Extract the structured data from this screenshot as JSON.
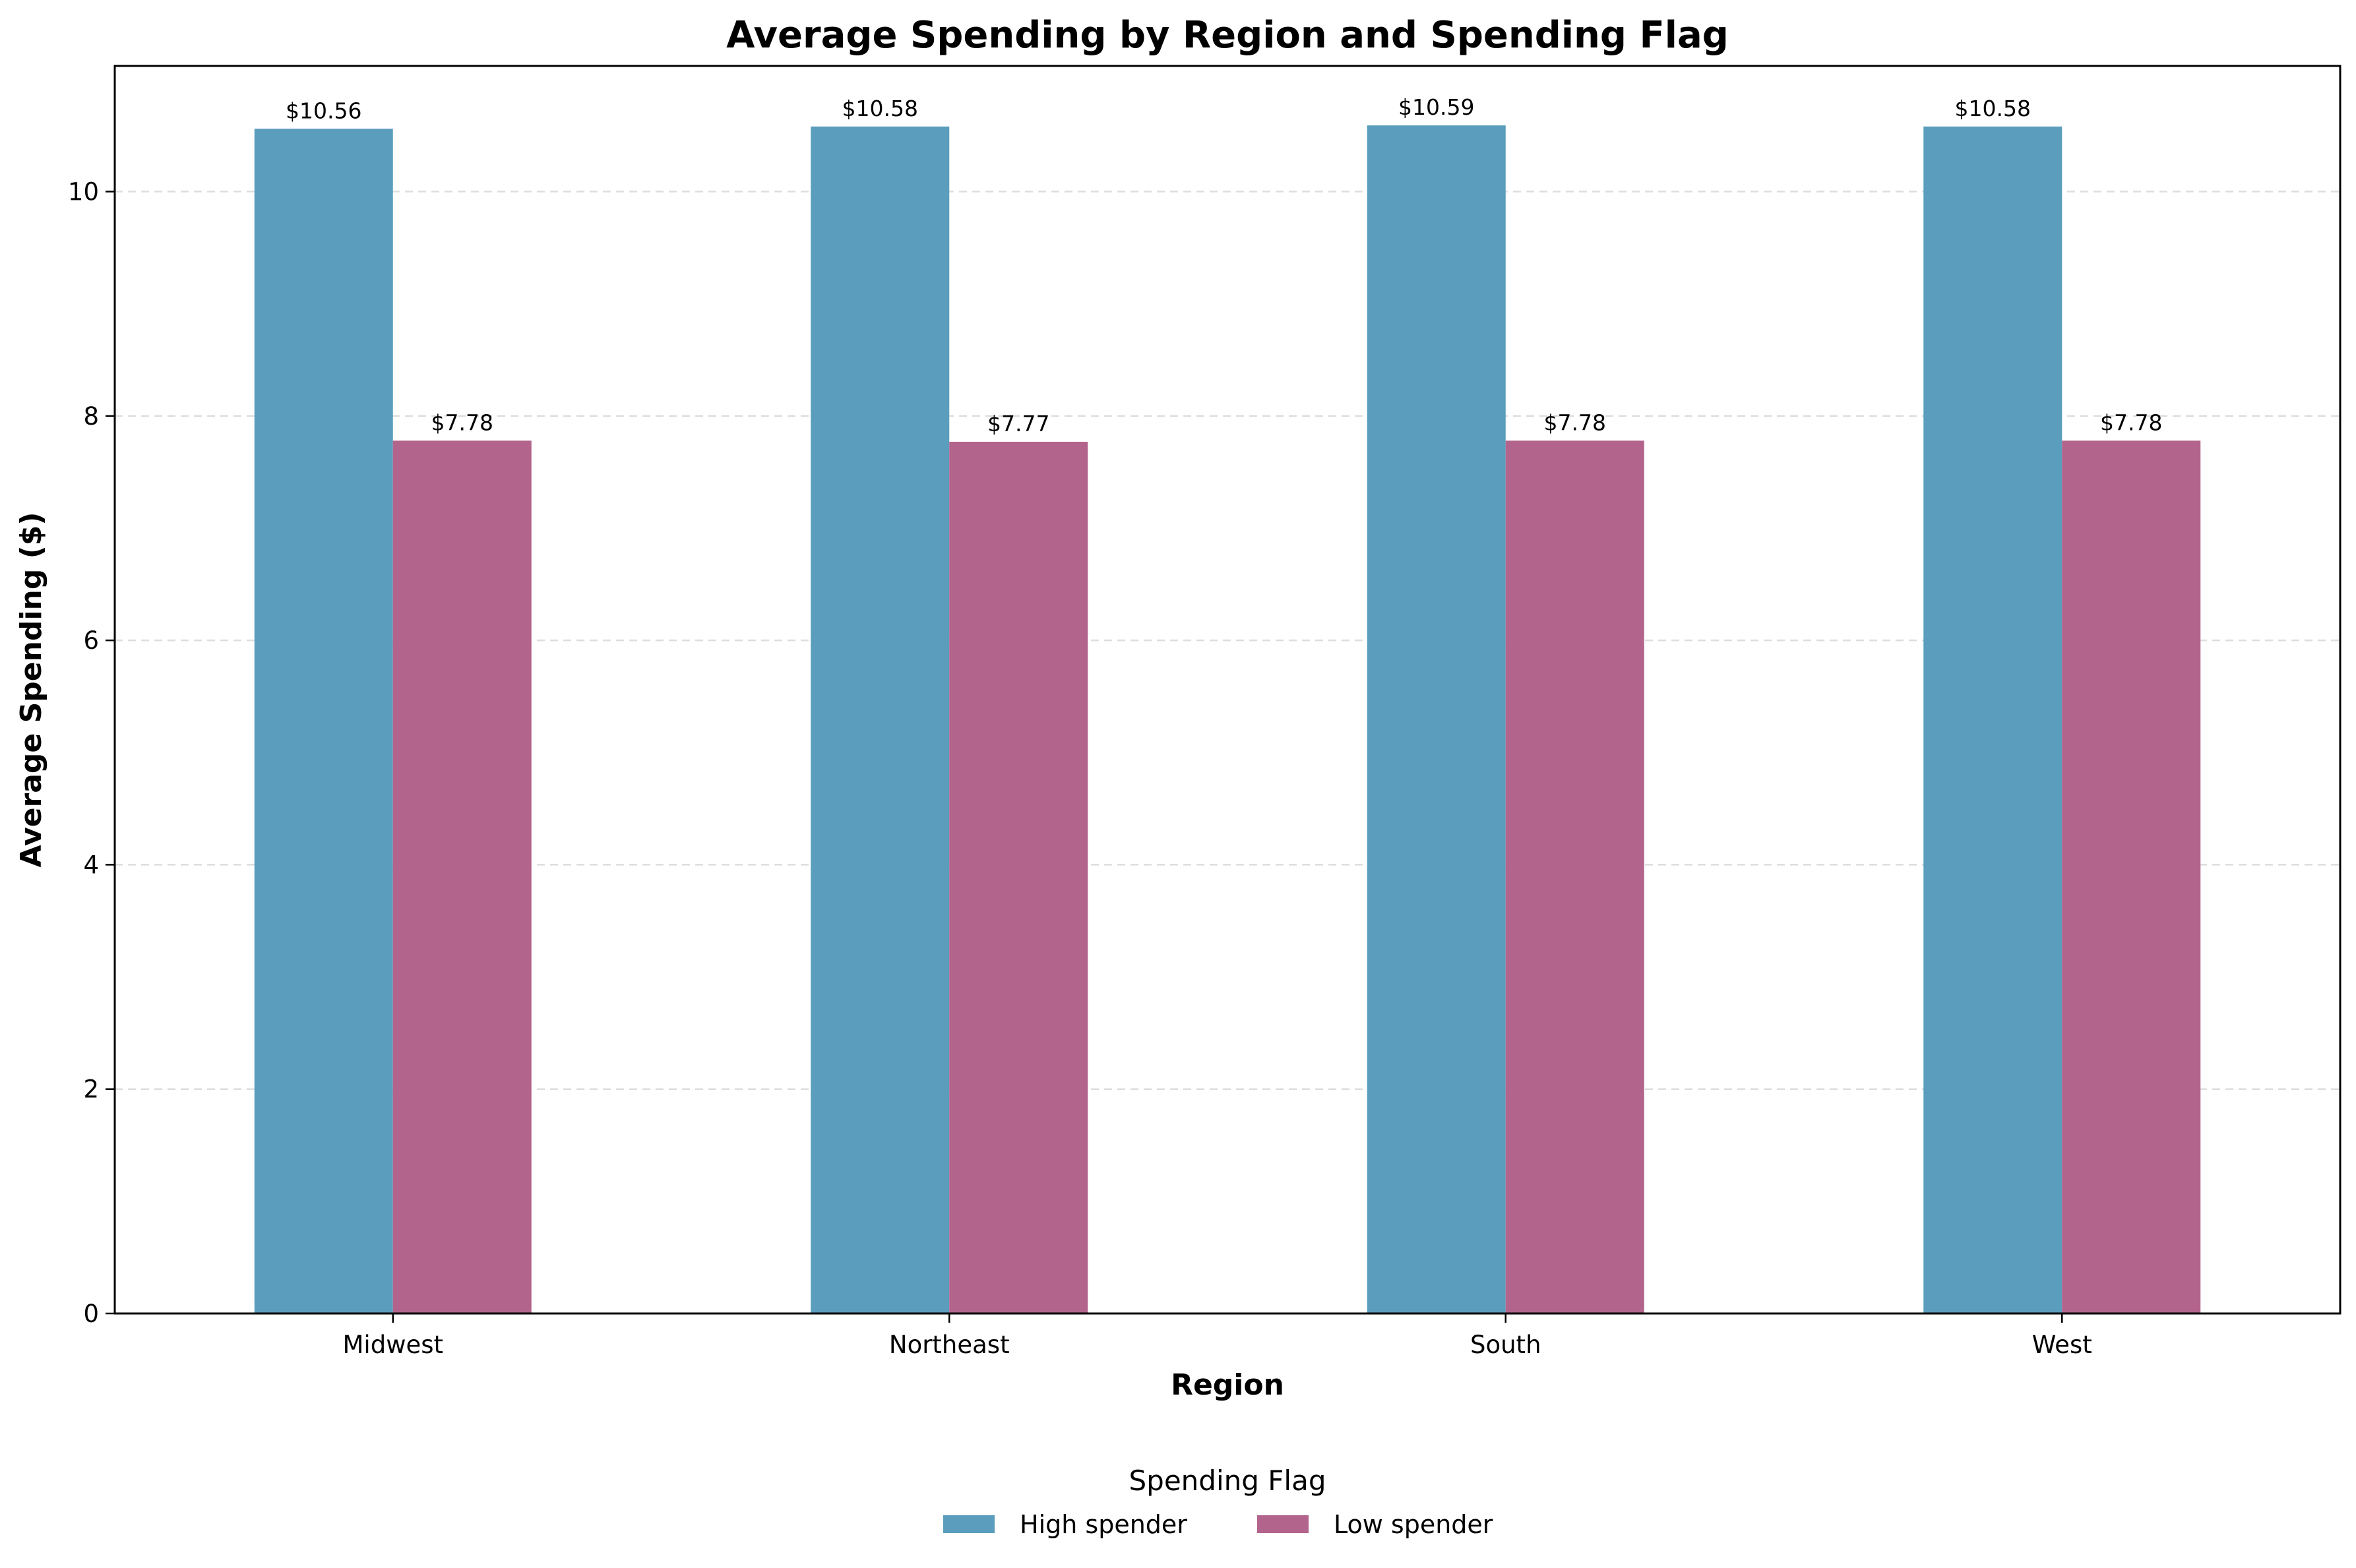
{
  "chart_data": {
    "type": "bar",
    "title": "Average Spending by Region and Spending Flag",
    "xlabel": "Region",
    "ylabel": "Average Spending ($)",
    "categories": [
      "Midwest",
      "Northeast",
      "South",
      "West"
    ],
    "series": [
      {
        "name": "High spender",
        "color": "#5A9DBC",
        "values": [
          10.56,
          10.58,
          10.59,
          10.58
        ],
        "labels": [
          "$10.56",
          "$10.58",
          "$10.59",
          "$10.58"
        ]
      },
      {
        "name": "Low spender",
        "color": "#B3648C",
        "values": [
          7.78,
          7.77,
          7.78,
          7.78
        ],
        "labels": [
          "$7.78",
          "$7.77",
          "$7.78",
          "$7.78"
        ]
      }
    ],
    "ylim": [
      0,
      11.12
    ],
    "yticks": [
      "0",
      "2",
      "4",
      "6",
      "8",
      "10"
    ],
    "grid": "horizontal dashed",
    "legend": {
      "title": "Spending Flag",
      "placement": "bottom-center",
      "entries": [
        "High spender",
        "Low spender"
      ]
    }
  }
}
